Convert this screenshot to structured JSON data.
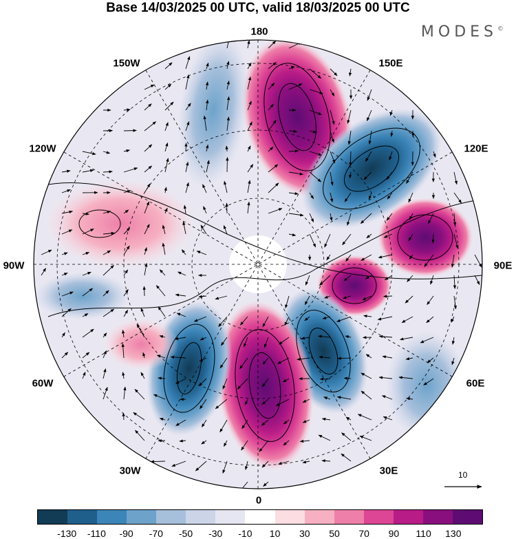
{
  "title": "Base 14/03/2025 00 UTC, valid 18/03/2025 00 UTC",
  "brand": "MODES",
  "brand_mark": "©",
  "longitude_labels": [
    "180",
    "150E",
    "120E",
    "90E",
    "60E",
    "30E",
    "0",
    "30W",
    "60W",
    "90W",
    "120W",
    "150W"
  ],
  "reference_vector_label": "10",
  "colorbar": {
    "colors": [
      "#123b55",
      "#1f5f8c",
      "#3c85b8",
      "#6da3cb",
      "#a6bfdb",
      "#ccd4e8",
      "#e6e6f2",
      "#ffffff",
      "#fcdde2",
      "#f6b0c2",
      "#ee7fa8",
      "#dd4595",
      "#b81c86",
      "#8a0f7e",
      "#5e0c73"
    ],
    "tick_labels": [
      "-130",
      "-110",
      "-90",
      "-70",
      "-50",
      "-30",
      "-10",
      "10",
      "30",
      "50",
      "70",
      "90",
      "110",
      "130"
    ]
  },
  "map_data": {
    "projection": "north-polar-stereographic",
    "anomaly_centers": [
      {
        "lon": 168,
        "value": 125
      },
      {
        "lon": 125,
        "value": -125
      },
      {
        "lon": 92,
        "value": 105
      },
      {
        "lon": 68,
        "value": 115
      },
      {
        "lon": 35,
        "value": -115
      },
      {
        "lon": 8,
        "value": 125
      },
      {
        "lon": -22,
        "value": -120
      },
      {
        "lon": -55,
        "value": 40
      },
      {
        "lon": -105,
        "value": 45
      },
      {
        "lon": -158,
        "value": -60
      }
    ]
  }
}
